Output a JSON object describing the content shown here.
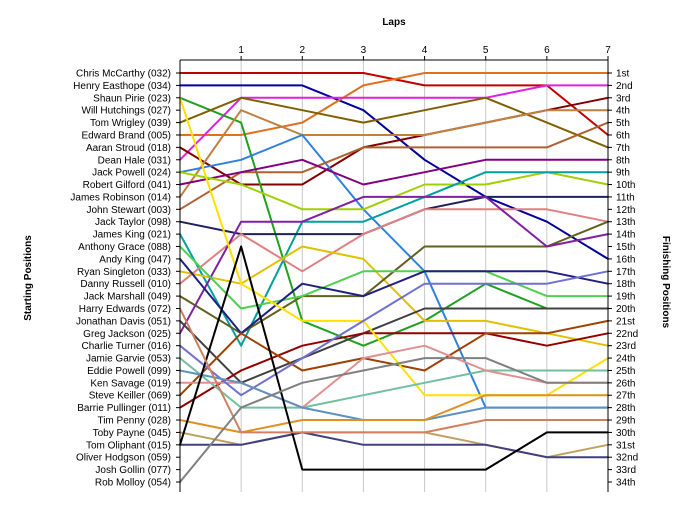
{
  "chart_data": {
    "type": "line",
    "title": "",
    "xlabel": "Laps",
    "ylabel_left": "Starting Positions",
    "ylabel_right": "Finishing Positions",
    "x_ticks": [
      "1",
      "2",
      "3",
      "4",
      "5",
      "6",
      "7"
    ],
    "xlim": [
      0,
      7
    ],
    "ylim": [
      1,
      34
    ],
    "y_inverted": true,
    "grid": true,
    "starting_labels": [
      "Chris McCarthy (032)",
      "Henry Easthope (034)",
      "Shaun Pirie (023)",
      "Will Hutchings (027)",
      "Tom Wrigley (039)",
      "Edward Brand (005)",
      "Aaran Stroud (018)",
      "Dean Hale (031)",
      "Jack Powell (024)",
      "Robert Gilford (041)",
      "James Robinson (014)",
      "John Stewart (003)",
      "Jack Taylor (098)",
      "James King (021)",
      "Anthony Grace (088)",
      "Andy King (047)",
      "Ryan Singleton (033)",
      "Danny Russell (010)",
      "Jack Marshall (049)",
      "Harry Edwards (072)",
      "Jonathan Davis (051)",
      "Greg Jackson (025)",
      "Charlie Turner (016)",
      "Jamie Garvie (053)",
      "Eddie Powell (099)",
      "Ken Savage (019)",
      "Steve Keiller (069)",
      "Barrie Pullinger (011)",
      "Tim Penny (028)",
      "Toby Payne (045)",
      "Tom Oliphant (015)",
      "Oliver Hodgson (059)",
      "Josh Gollin (077)",
      "Rob Molloy (054)"
    ],
    "finishing_labels": [
      "1st",
      "2nd",
      "3rd",
      "4th",
      "5th",
      "6th",
      "7th",
      "8th",
      "9th",
      "10th",
      "11th",
      "12th",
      "13th",
      "14th",
      "15th",
      "16th",
      "17th",
      "18th",
      "19th",
      "20th",
      "21st",
      "22nd",
      "23rd",
      "24th",
      "25th",
      "26th",
      "27th",
      "28th",
      "29th",
      "30th",
      "31st",
      "32nd",
      "33rd",
      "34th"
    ],
    "series": [
      {
        "color": "#c00000",
        "values": [
          1,
          1,
          1,
          1,
          2,
          2,
          2,
          6
        ]
      },
      {
        "color": "#0000a0",
        "values": [
          2,
          2,
          2,
          4,
          8,
          11,
          13,
          16
        ]
      },
      {
        "color": "#e07020",
        "values": [
          6,
          6,
          5,
          2,
          1,
          1,
          1,
          1
        ]
      },
      {
        "color": "#e020e0",
        "values": [
          8,
          3,
          3,
          3,
          3,
          3,
          2,
          2
        ]
      },
      {
        "color": "#800000",
        "values": [
          7,
          10,
          10,
          7,
          6,
          5,
          4,
          3
        ]
      },
      {
        "color": "#20a020",
        "values": [
          3,
          5,
          21,
          23,
          21,
          18,
          20,
          20
        ]
      },
      {
        "color": "#806000",
        "values": [
          5,
          3,
          4,
          5,
          4,
          3,
          5,
          7
        ]
      },
      {
        "color": "#c08040",
        "values": [
          11,
          4,
          6,
          6,
          6,
          5,
          4,
          4
        ]
      },
      {
        "color": "#3080e0",
        "values": [
          9,
          8,
          6,
          12,
          17,
          28,
          28,
          28
        ]
      },
      {
        "color": "#b06030",
        "values": [
          12,
          9,
          9,
          7,
          7,
          7,
          7,
          5
        ]
      },
      {
        "color": "#800080",
        "values": [
          10,
          9,
          8,
          10,
          9,
          8,
          8,
          8
        ]
      },
      {
        "color": "#a0d000",
        "values": [
          9,
          10,
          12,
          12,
          10,
          10,
          9,
          10
        ]
      },
      {
        "color": "#00a0a0",
        "values": [
          14,
          23,
          13,
          13,
          11,
          9,
          9,
          9
        ]
      },
      {
        "color": "#202060",
        "values": [
          13,
          14,
          14,
          14,
          12,
          11,
          11,
          11
        ]
      },
      {
        "color": "#e08080",
        "values": [
          18,
          14,
          17,
          14,
          12,
          12,
          12,
          13
        ]
      },
      {
        "color": "#e0c000",
        "values": [
          17,
          18,
          15,
          16,
          21,
          21,
          22,
          23
        ]
      },
      {
        "color": "#606020",
        "values": [
          19,
          22,
          19,
          19,
          15,
          15,
          15,
          13
        ]
      },
      {
        "color": "#8020a0",
        "values": [
          22,
          13,
          13,
          11,
          11,
          11,
          15,
          14
        ]
      },
      {
        "color": "#50d050",
        "values": [
          15,
          20,
          19,
          17,
          17,
          17,
          19,
          19
        ]
      },
      {
        "color": "#202080",
        "values": [
          16,
          22,
          18,
          19,
          17,
          17,
          17,
          18
        ]
      },
      {
        "color": "#404040",
        "values": [
          21,
          26,
          24,
          22,
          20,
          20,
          20,
          20
        ]
      },
      {
        "color": "#900000",
        "values": [
          28,
          25,
          23,
          22,
          22,
          22,
          23,
          22
        ]
      },
      {
        "color": "#a04000",
        "values": [
          27,
          22,
          25,
          24,
          25,
          22,
          22,
          21
        ]
      },
      {
        "color": "#ffe000",
        "values": [
          3,
          18,
          21,
          21,
          27,
          27,
          27,
          24
        ]
      },
      {
        "color": "#70c0a0",
        "values": [
          24,
          28,
          28,
          27,
          26,
          25,
          25,
          25
        ]
      },
      {
        "color": "#e09090",
        "values": [
          26,
          26,
          28,
          24,
          23,
          25,
          26,
          26
        ]
      },
      {
        "color": "#7070d0",
        "values": [
          23,
          27,
          24,
          21,
          18,
          18,
          18,
          17
        ]
      },
      {
        "color": "#6090c0",
        "values": [
          25,
          26,
          28,
          29,
          29,
          28,
          28,
          28
        ]
      },
      {
        "color": "#e09020",
        "values": [
          29,
          30,
          29,
          29,
          29,
          27,
          27,
          27
        ]
      },
      {
        "color": "#c0a060",
        "values": [
          30,
          31,
          30,
          30,
          30,
          31,
          32,
          31
        ]
      },
      {
        "color": "#404080",
        "values": [
          31,
          31,
          30,
          31,
          31,
          31,
          32,
          32
        ]
      },
      {
        "color": "#000000",
        "values": [
          31,
          15,
          33,
          33,
          33,
          33,
          30,
          30
        ]
      },
      {
        "color": "#d08060",
        "values": [
          20,
          30,
          30,
          30,
          30,
          29,
          29,
          29
        ]
      },
      {
        "color": "#808080",
        "values": [
          34,
          28,
          26,
          25,
          24,
          24,
          26,
          26
        ]
      }
    ]
  }
}
